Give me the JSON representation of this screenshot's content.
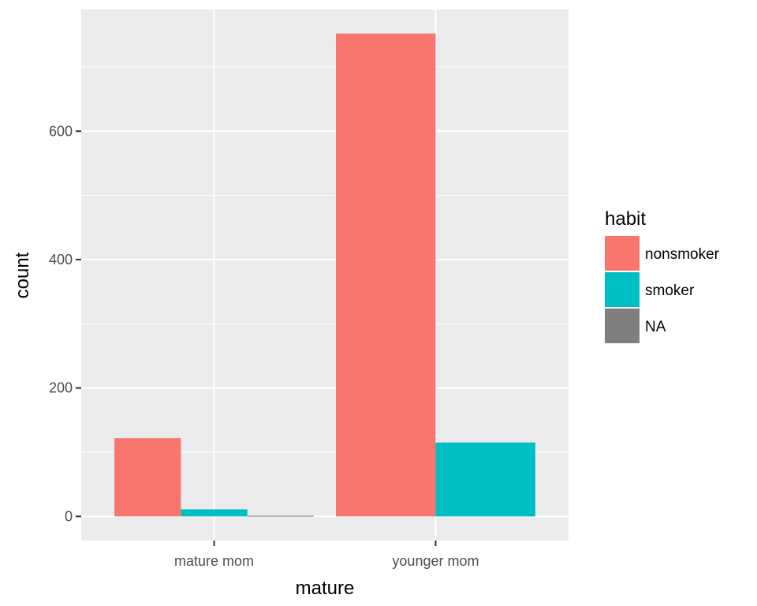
{
  "chart_data": {
    "type": "bar",
    "title": "",
    "xlabel": "mature",
    "ylabel": "count",
    "categories": [
      "mature mom",
      "younger mom"
    ],
    "series": [
      {
        "name": "nonsmoker",
        "color": "#F8766D",
        "values": [
          122,
          752
        ]
      },
      {
        "name": "smoker",
        "color": "#00BFC4",
        "values": [
          11,
          115
        ]
      },
      {
        "name": "NA",
        "color": "#7F7F7F",
        "values": [
          1,
          null
        ]
      }
    ],
    "ylim": [
      -37.6,
      789.6
    ],
    "yticks": [
      0,
      200,
      400,
      600
    ],
    "legend": {
      "title": "habit",
      "placement": "right"
    },
    "grid": true,
    "panel_background": "#EBEBEB"
  }
}
